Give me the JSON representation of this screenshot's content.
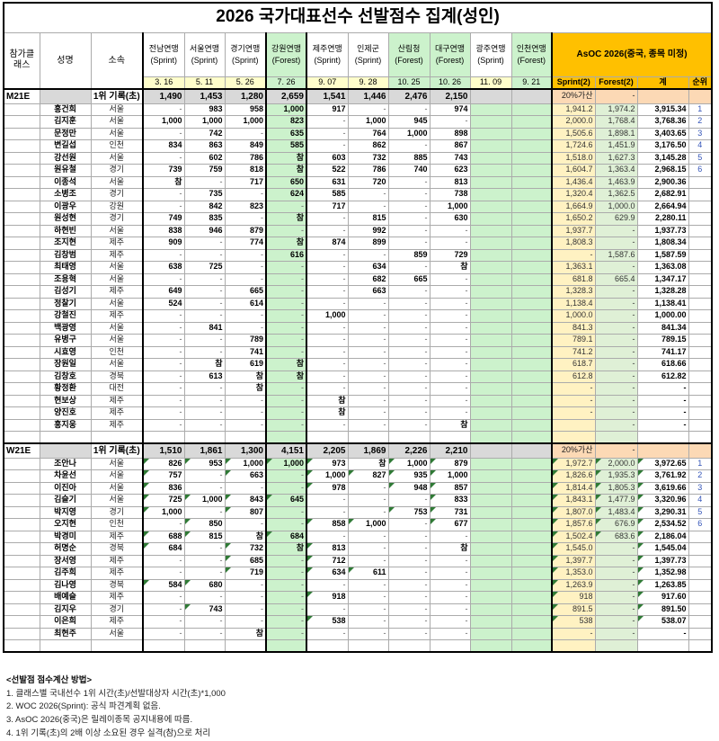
{
  "title": "2026 국가대표선수 선발점수 집계(성인)",
  "header": {
    "class_label": "참가클래스",
    "name_label": "성명",
    "affil_label": "소속",
    "events": [
      {
        "name": "전남연맹",
        "type": "Sprint",
        "date": "3. 16"
      },
      {
        "name": "서울연맹",
        "type": "Sprint",
        "date": "5. 11"
      },
      {
        "name": "경기연맹",
        "type": "Sprint",
        "date": "5. 26"
      },
      {
        "name": "강원연맹",
        "type": "Forest",
        "date": "7. 26"
      },
      {
        "name": "제주연맹",
        "type": "Sprint",
        "date": "9. 07"
      },
      {
        "name": "인제군",
        "type": "Sprint",
        "date": "9. 28"
      },
      {
        "name": "산림청",
        "type": "Forest",
        "date": "10. 25"
      },
      {
        "name": "대구연맹",
        "type": "Forest",
        "date": "10. 26"
      },
      {
        "name": "광주연맹",
        "type": "Sprint",
        "date": "11. 09"
      },
      {
        "name": "인천연맹",
        "type": "Forest",
        "date": "9. 21"
      }
    ],
    "asoc": {
      "title": "AsOC 2026(중국, 종목 미정)",
      "cols": [
        "Sprint(2)",
        "Forest(2)",
        "계",
        "순위"
      ]
    }
  },
  "colors": {
    "forest_green": "#CCF2CC",
    "sprint_yellow": "#FFFECB",
    "asoc_gold": "#FFC000",
    "bonus_orange": "#FCD9B5",
    "record_gray": "#D9D9D9",
    "sprint2_bg": "#FFF2C2",
    "forest2_bg": "#DFF0D6",
    "rank_blue": "#3354B8"
  },
  "sections": [
    {
      "class": "M21E",
      "record_label": "1위 기록(초)",
      "records": [
        "1,490",
        "1,453",
        "1,280",
        "2,659",
        "1,541",
        "1,446",
        "2,476",
        "2,150",
        "",
        ""
      ],
      "bonus_label": "20%가산",
      "bonus_forest": "-",
      "triangles": false,
      "rows": [
        {
          "name": "홍건희",
          "affil": "서울",
          "scores": [
            "-",
            "983",
            "958",
            "1,000",
            "917",
            "-",
            "-",
            "974",
            "",
            ""
          ],
          "sprint2": "1,941.2",
          "forest2": "1,974.2",
          "total": "3,915.34",
          "rank": "1"
        },
        {
          "name": "김지훈",
          "affil": "서울",
          "scores": [
            "1,000",
            "1,000",
            "1,000",
            "823",
            "-",
            "1,000",
            "945",
            "-",
            "",
            ""
          ],
          "sprint2": "2,000.0",
          "forest2": "1,768.4",
          "total": "3,768.36",
          "rank": "2"
        },
        {
          "name": "문정만",
          "affil": "서울",
          "scores": [
            "-",
            "742",
            "-",
            "635",
            "-",
            "764",
            "1,000",
            "898",
            "",
            ""
          ],
          "sprint2": "1,505.6",
          "forest2": "1,898.1",
          "total": "3,403.65",
          "rank": "3"
        },
        {
          "name": "변길섭",
          "affil": "인천",
          "scores": [
            "834",
            "863",
            "849",
            "585",
            "-",
            "862",
            "-",
            "867",
            "",
            ""
          ],
          "sprint2": "1,724.6",
          "forest2": "1,451.9",
          "total": "3,176.50",
          "rank": "4"
        },
        {
          "name": "강선원",
          "affil": "서울",
          "scores": [
            "-",
            "602",
            "786",
            "참",
            "603",
            "732",
            "885",
            "743",
            "",
            ""
          ],
          "sprint2": "1,518.0",
          "forest2": "1,627.3",
          "total": "3,145.28",
          "rank": "5"
        },
        {
          "name": "원유철",
          "affil": "경기",
          "scores": [
            "739",
            "759",
            "818",
            "참",
            "522",
            "786",
            "740",
            "623",
            "",
            ""
          ],
          "sprint2": "1,604.7",
          "forest2": "1,363.4",
          "total": "2,968.15",
          "rank": "6"
        },
        {
          "name": "이종석",
          "affil": "서울",
          "scores": [
            "참",
            "-",
            "717",
            "650",
            "631",
            "720",
            "-",
            "813",
            "",
            ""
          ],
          "sprint2": "1,436.4",
          "forest2": "1,463.9",
          "total": "2,900.36",
          "rank": ""
        },
        {
          "name": "소병조",
          "affil": "경기",
          "scores": [
            "-",
            "735",
            "-",
            "624",
            "585",
            "-",
            "-",
            "738",
            "",
            ""
          ],
          "sprint2": "1,320.4",
          "forest2": "1,362.5",
          "total": "2,682.91",
          "rank": ""
        },
        {
          "name": "이광우",
          "affil": "강원",
          "scores": [
            "-",
            "842",
            "823",
            "-",
            "717",
            "-",
            "-",
            "1,000",
            "",
            ""
          ],
          "sprint2": "1,664.9",
          "forest2": "1,000.0",
          "total": "2,664.94",
          "rank": ""
        },
        {
          "name": "원성현",
          "affil": "경기",
          "scores": [
            "749",
            "835",
            "-",
            "참",
            "-",
            "815",
            "-",
            "630",
            "",
            ""
          ],
          "sprint2": "1,650.2",
          "forest2": "629.9",
          "total": "2,280.11",
          "rank": ""
        },
        {
          "name": "하현빈",
          "affil": "서울",
          "scores": [
            "838",
            "946",
            "879",
            "-",
            "-",
            "992",
            "-",
            "-",
            "",
            ""
          ],
          "sprint2": "1,937.7",
          "forest2": "-",
          "total": "1,937.73",
          "rank": ""
        },
        {
          "name": "조지현",
          "affil": "제주",
          "scores": [
            "909",
            "-",
            "774",
            "참",
            "874",
            "899",
            "-",
            "-",
            "",
            ""
          ],
          "sprint2": "1,808.3",
          "forest2": "-",
          "total": "1,808.34",
          "rank": ""
        },
        {
          "name": "김창범",
          "affil": "제주",
          "scores": [
            "-",
            "-",
            "-",
            "616",
            "-",
            "-",
            "859",
            "729",
            "",
            ""
          ],
          "sprint2": "-",
          "forest2": "1,587.6",
          "total": "1,587.59",
          "rank": ""
        },
        {
          "name": "최태영",
          "affil": "서울",
          "scores": [
            "638",
            "725",
            "-",
            "-",
            "-",
            "634",
            "-",
            "참",
            "",
            ""
          ],
          "sprint2": "1,363.1",
          "forest2": "-",
          "total": "1,363.08",
          "rank": ""
        },
        {
          "name": "조용혁",
          "affil": "서울",
          "scores": [
            "-",
            "-",
            "-",
            "-",
            "-",
            "682",
            "665",
            "-",
            "",
            ""
          ],
          "sprint2": "681.8",
          "forest2": "665.4",
          "total": "1,347.17",
          "rank": ""
        },
        {
          "name": "김성기",
          "affil": "제주",
          "scores": [
            "649",
            "-",
            "665",
            "-",
            "-",
            "663",
            "-",
            "-",
            "",
            ""
          ],
          "sprint2": "1,328.3",
          "forest2": "-",
          "total": "1,328.28",
          "rank": ""
        },
        {
          "name": "정찰기",
          "affil": "서울",
          "scores": [
            "524",
            "-",
            "614",
            "-",
            "-",
            "-",
            "-",
            "-",
            "",
            ""
          ],
          "sprint2": "1,138.4",
          "forest2": "-",
          "total": "1,138.41",
          "rank": ""
        },
        {
          "name": "강철진",
          "affil": "제주",
          "scores": [
            "-",
            "-",
            "-",
            "-",
            "1,000",
            "-",
            "-",
            "-",
            "",
            ""
          ],
          "sprint2": "1,000.0",
          "forest2": "-",
          "total": "1,000.00",
          "rank": ""
        },
        {
          "name": "백광영",
          "affil": "서울",
          "scores": [
            "-",
            "841",
            "-",
            "-",
            "-",
            "-",
            "-",
            "-",
            "",
            ""
          ],
          "sprint2": "841.3",
          "forest2": "-",
          "total": "841.34",
          "rank": ""
        },
        {
          "name": "유병구",
          "affil": "서울",
          "scores": [
            "-",
            "-",
            "789",
            "-",
            "-",
            "-",
            "-",
            "-",
            "",
            ""
          ],
          "sprint2": "789.1",
          "forest2": "-",
          "total": "789.15",
          "rank": ""
        },
        {
          "name": "시효영",
          "affil": "인천",
          "scores": [
            "-",
            "-",
            "741",
            "-",
            "-",
            "-",
            "-",
            "-",
            "",
            ""
          ],
          "sprint2": "741.2",
          "forest2": "-",
          "total": "741.17",
          "rank": ""
        },
        {
          "name": "장원일",
          "affil": "서울",
          "scores": [
            "-",
            "참",
            "619",
            "참",
            "-",
            "-",
            "-",
            "-",
            "",
            ""
          ],
          "sprint2": "618.7",
          "forest2": "-",
          "total": "618.66",
          "rank": ""
        },
        {
          "name": "김창호",
          "affil": "경북",
          "scores": [
            "-",
            "613",
            "참",
            "참",
            "-",
            "-",
            "-",
            "-",
            "",
            ""
          ],
          "sprint2": "612.8",
          "forest2": "-",
          "total": "612.82",
          "rank": ""
        },
        {
          "name": "황정환",
          "affil": "대전",
          "scores": [
            "-",
            "-",
            "참",
            "-",
            "-",
            "-",
            "-",
            "-",
            "",
            ""
          ],
          "sprint2": "-",
          "forest2": "-",
          "total": "-",
          "rank": ""
        },
        {
          "name": "현보상",
          "affil": "제주",
          "scores": [
            "-",
            "-",
            "-",
            "-",
            "참",
            "-",
            "-",
            "-",
            "",
            ""
          ],
          "sprint2": "-",
          "forest2": "-",
          "total": "-",
          "rank": ""
        },
        {
          "name": "양진호",
          "affil": "제주",
          "scores": [
            "-",
            "-",
            "-",
            "-",
            "참",
            "-",
            "-",
            "-",
            "",
            ""
          ],
          "sprint2": "-",
          "forest2": "-",
          "total": "-",
          "rank": ""
        },
        {
          "name": "홍지웅",
          "affil": "제주",
          "scores": [
            "-",
            "-",
            "-",
            "-",
            "-",
            "-",
            "-",
            "참",
            "",
            ""
          ],
          "sprint2": "",
          "forest2": "-",
          "total": "-",
          "rank": ""
        },
        {
          "name": "",
          "affil": "",
          "scores": [
            "",
            "",
            "",
            "",
            "",
            "",
            "",
            "",
            "",
            ""
          ],
          "sprint2": "",
          "forest2": "",
          "total": "",
          "rank": ""
        }
      ]
    },
    {
      "class": "W21E",
      "record_label": "1위 기록(초)",
      "records": [
        "1,510",
        "1,861",
        "1,300",
        "4,151",
        "2,205",
        "1,869",
        "2,226",
        "2,210",
        "",
        ""
      ],
      "bonus_label": "20%가산",
      "bonus_forest": "-",
      "triangles": true,
      "rows": [
        {
          "name": "조안나",
          "affil": "서울",
          "scores": [
            "826",
            "953",
            "1,000",
            "1,000",
            "973",
            "참",
            "1,000",
            "879",
            "",
            ""
          ],
          "sprint2": "1,972.7",
          "forest2": "2,000.0",
          "total": "3,972.65",
          "rank": "1"
        },
        {
          "name": "차윤선",
          "affil": "서울",
          "scores": [
            "757",
            "-",
            "663",
            "-",
            "1,000",
            "827",
            "935",
            "1,000",
            "",
            ""
          ],
          "sprint2": "1,826.6",
          "forest2": "1,935.3",
          "total": "3,761.92",
          "rank": "2"
        },
        {
          "name": "이진아",
          "affil": "서울",
          "scores": [
            "836",
            "-",
            "-",
            "-",
            "978",
            "-",
            "948",
            "857",
            "",
            ""
          ],
          "sprint2": "1,814.4",
          "forest2": "1,805.3",
          "total": "3,619.66",
          "rank": "3"
        },
        {
          "name": "김슬기",
          "affil": "서울",
          "scores": [
            "725",
            "1,000",
            "843",
            "645",
            "-",
            "-",
            "-",
            "833",
            "",
            ""
          ],
          "sprint2": "1,843.1",
          "forest2": "1,477.9",
          "total": "3,320.96",
          "rank": "4"
        },
        {
          "name": "박지영",
          "affil": "경기",
          "scores": [
            "1,000",
            "-",
            "807",
            "-",
            "-",
            "-",
            "753",
            "731",
            "",
            ""
          ],
          "sprint2": "1,807.0",
          "forest2": "1,483.4",
          "total": "3,290.31",
          "rank": "5"
        },
        {
          "name": "오지현",
          "affil": "인천",
          "scores": [
            "-",
            "850",
            "-",
            "-",
            "858",
            "1,000",
            "-",
            "677",
            "",
            ""
          ],
          "sprint2": "1,857.6",
          "forest2": "676.9",
          "total": "2,534.52",
          "rank": "6"
        },
        {
          "name": "박경미",
          "affil": "제주",
          "scores": [
            "688",
            "815",
            "참",
            "684",
            "-",
            "-",
            "-",
            "-",
            "",
            ""
          ],
          "sprint2": "1,502.4",
          "forest2": "683.6",
          "total": "2,186.04",
          "rank": ""
        },
        {
          "name": "허명순",
          "affil": "경북",
          "scores": [
            "684",
            "-",
            "732",
            "참",
            "813",
            "-",
            "-",
            "참",
            "",
            ""
          ],
          "sprint2": "1,545.0",
          "forest2": "-",
          "total": "1,545.04",
          "rank": ""
        },
        {
          "name": "장서영",
          "affil": "제주",
          "scores": [
            "-",
            "-",
            "685",
            "-",
            "712",
            "-",
            "-",
            "-",
            "",
            ""
          ],
          "sprint2": "1,397.7",
          "forest2": "-",
          "total": "1,397.73",
          "rank": ""
        },
        {
          "name": "김주희",
          "affil": "제주",
          "scores": [
            "-",
            "-",
            "719",
            "-",
            "634",
            "611",
            "-",
            "-",
            "",
            ""
          ],
          "sprint2": "1,353.0",
          "forest2": "-",
          "total": "1,352.98",
          "rank": ""
        },
        {
          "name": "김나영",
          "affil": "경북",
          "scores": [
            "584",
            "680",
            "-",
            "-",
            "-",
            "-",
            "-",
            "-",
            "",
            ""
          ],
          "sprint2": "1,263.9",
          "forest2": "-",
          "total": "1,263.85",
          "rank": ""
        },
        {
          "name": "배예슬",
          "affil": "제주",
          "scores": [
            "-",
            "-",
            "-",
            "-",
            "918",
            "-",
            "-",
            "-",
            "",
            ""
          ],
          "sprint2": "918",
          "forest2": "-",
          "total": "917.60",
          "rank": ""
        },
        {
          "name": "김지우",
          "affil": "경기",
          "scores": [
            "-",
            "743",
            "-",
            "-",
            "-",
            "-",
            "-",
            "-",
            "",
            ""
          ],
          "sprint2": "891.5",
          "forest2": "-",
          "total": "891.50",
          "rank": ""
        },
        {
          "name": "이은희",
          "affil": "제주",
          "scores": [
            "-",
            "-",
            "-",
            "-",
            "538",
            "-",
            "-",
            "-",
            "",
            ""
          ],
          "sprint2": "538",
          "forest2": "-",
          "total": "538.07",
          "rank": ""
        },
        {
          "name": "최현주",
          "affil": "서울",
          "scores": [
            "-",
            "-",
            "참",
            "-",
            "-",
            "-",
            "-",
            "-",
            "",
            ""
          ],
          "sprint2": "-",
          "forest2": "-",
          "total": "-",
          "rank": ""
        },
        {
          "name": "",
          "affil": "",
          "scores": [
            "",
            "",
            "",
            "",
            "",
            "",
            "",
            "",
            "",
            ""
          ],
          "sprint2": "",
          "forest2": "",
          "total": "",
          "rank": ""
        }
      ]
    }
  ],
  "notes": {
    "title": "<선발점 점수계산 방법>",
    "lines": [
      "1. 클래스별 국내선수 1위 시간(초)/선발대상자 시간(초)*1,000",
      "2. WOC 2026(Sprint): 공식 파견계획 없음.",
      "3. AsOC 2026(중국)은 릴레이종목 공지내용에 따름.",
      "4. 1위 기록(초)의 2배 이상 소요된 경우 실격(참)으로 처리"
    ]
  }
}
